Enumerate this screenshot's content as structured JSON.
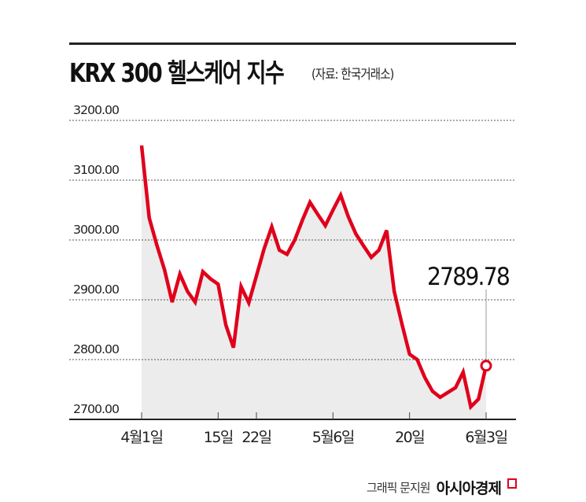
{
  "header": {
    "title": "KRX 300 헬스케어 지수",
    "source": "(자료: 한국거래소)"
  },
  "footer": {
    "credit": "그래픽 문지원",
    "brand": "아시아경제"
  },
  "colors": {
    "line": "#e0001b",
    "fill": "#ececec",
    "grid": "#555555"
  },
  "chart_data": {
    "type": "area",
    "title": "KRX 300 헬스케어 지수",
    "ylim": [
      2700,
      3200
    ],
    "y_ticks": [
      "3200.00",
      "3100.00",
      "3000.00",
      "2900.00",
      "2800.00",
      "2700.00"
    ],
    "x_ticks": [
      {
        "date": "4/1",
        "label": "4월1일"
      },
      {
        "date": "4/15",
        "label": "15일"
      },
      {
        "date": "4/22",
        "label": "22일"
      },
      {
        "date": "5/6",
        "label": "5월6일"
      },
      {
        "date": "5/20",
        "label": "20일"
      },
      {
        "date": "6/3",
        "label": "6월3일"
      }
    ],
    "grid": true,
    "annotation": {
      "date": "6/3",
      "label": "2789.78"
    },
    "points": [
      [
        "4/1",
        3158
      ],
      [
        "4/2",
        3037
      ],
      [
        "4/3",
        2991
      ],
      [
        "4/4",
        2950
      ],
      [
        "4/5",
        2896
      ],
      [
        "4/8",
        2943
      ],
      [
        "4/9",
        2914
      ],
      [
        "4/10",
        2896
      ],
      [
        "4/11",
        2947
      ],
      [
        "4/12",
        2935
      ],
      [
        "4/15",
        2926
      ],
      [
        "4/16",
        2858
      ],
      [
        "4/17",
        2820
      ],
      [
        "4/18",
        2922
      ],
      [
        "4/19",
        2895
      ],
      [
        "4/22",
        2940
      ],
      [
        "4/23",
        2985
      ],
      [
        "4/24",
        3022
      ],
      [
        "4/25",
        2983
      ],
      [
        "4/26",
        2976
      ],
      [
        "4/29",
        3000
      ],
      [
        "4/30",
        3033
      ],
      [
        "5/1",
        3063
      ],
      [
        "5/2",
        3043
      ],
      [
        "5/3",
        3024
      ],
      [
        "5/6",
        3050
      ],
      [
        "5/7",
        3075
      ],
      [
        "5/8",
        3039
      ],
      [
        "5/9",
        3010
      ],
      [
        "5/10",
        2990
      ],
      [
        "5/13",
        2971
      ],
      [
        "5/14",
        2983
      ],
      [
        "5/15",
        3016
      ],
      [
        "5/16",
        2914
      ],
      [
        "5/17",
        2860
      ],
      [
        "5/20",
        2809
      ],
      [
        "5/21",
        2800
      ],
      [
        "5/22",
        2770
      ],
      [
        "5/23",
        2747
      ],
      [
        "5/24",
        2737
      ],
      [
        "5/27",
        2745
      ],
      [
        "5/28",
        2753
      ],
      [
        "5/29",
        2779
      ],
      [
        "5/30",
        2721
      ],
      [
        "5/31",
        2734
      ],
      [
        "6/3",
        2789.78
      ]
    ]
  }
}
